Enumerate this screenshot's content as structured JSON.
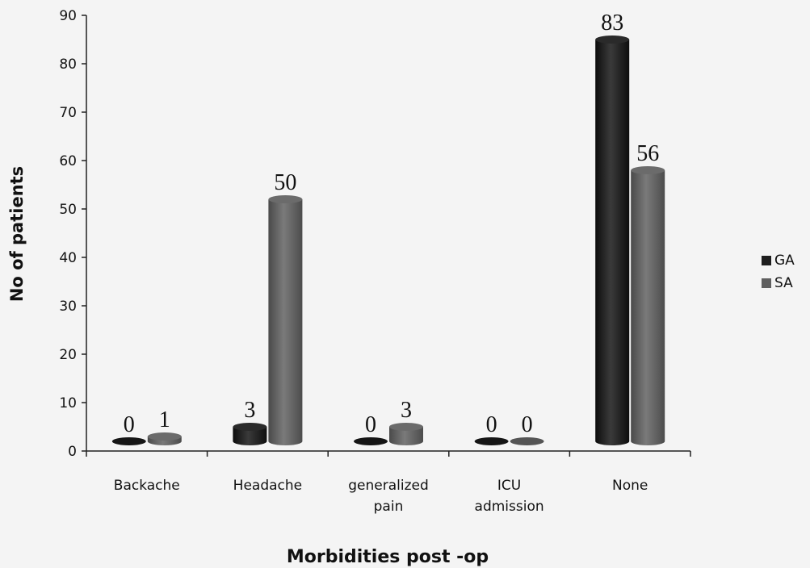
{
  "chart_data": {
    "type": "bar",
    "title": "",
    "xlabel": "Morbidities post -op",
    "ylabel": "No of patients",
    "ylim": [
      0,
      90
    ],
    "yticks": [
      0,
      10,
      20,
      30,
      40,
      50,
      60,
      70,
      80,
      90
    ],
    "categories": [
      [
        "Backache"
      ],
      [
        "Headache"
      ],
      [
        "generalized",
        "pain"
      ],
      [
        "ICU",
        "admission"
      ],
      [
        "None"
      ]
    ],
    "series": [
      {
        "name": "GA",
        "color": "#1e1e1e",
        "values": [
          0,
          3,
          0,
          0,
          83
        ]
      },
      {
        "name": "SA",
        "color": "#5f5f5f",
        "values": [
          1,
          50,
          3,
          0,
          56
        ]
      }
    ],
    "legend_position": "right",
    "grid": false,
    "data_labels": true
  }
}
